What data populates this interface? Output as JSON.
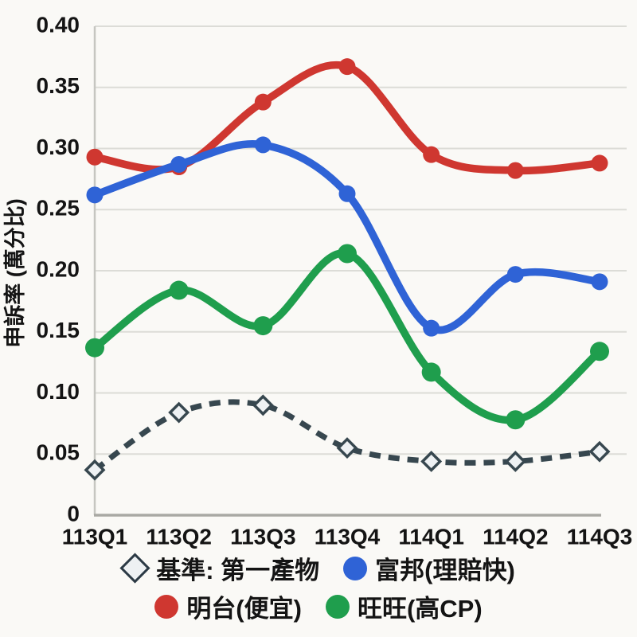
{
  "chart_data": {
    "type": "line",
    "title": "",
    "xlabel": "",
    "ylabel": "申訴率 (萬分比)",
    "categories": [
      "113Q1",
      "113Q2",
      "113Q3",
      "113Q4",
      "114Q1",
      "114Q2",
      "114Q3"
    ],
    "ylim": [
      0,
      0.4
    ],
    "ytick_labels": [
      "0",
      "0.05",
      "0.10",
      "0.15",
      "0.20",
      "0.25",
      "0.30",
      "0.35",
      "0.40"
    ],
    "yticks": [
      0,
      0.05,
      0.1,
      0.15,
      0.2,
      0.25,
      0.3,
      0.35,
      0.4
    ],
    "grid": true,
    "legend_position": "bottom",
    "series": [
      {
        "name": "基準: 第一產物",
        "color": "#37474f",
        "style": "dashed",
        "marker": "diamond",
        "marker_fill": "#eef1f3",
        "marker_size": 11,
        "values": [
          0.037,
          0.084,
          0.09,
          0.055,
          0.044,
          0.044,
          0.052
        ]
      },
      {
        "name": "旺旺(高CP)",
        "color": "#1f9e4d",
        "style": "solid",
        "marker": "circle",
        "marker_size": 12,
        "values": [
          0.137,
          0.184,
          0.155,
          0.214,
          0.117,
          0.078,
          0.134
        ]
      },
      {
        "name": "明台(便宜)",
        "color": "#cf3730",
        "style": "solid",
        "marker": "circle",
        "marker_size": 10.5,
        "values": [
          0.293,
          0.285,
          0.338,
          0.367,
          0.295,
          0.282,
          0.288
        ]
      },
      {
        "name": "富邦(理賠快)",
        "color": "#2f63d6",
        "style": "solid",
        "marker": "circle",
        "marker_size": 10.5,
        "values": [
          0.262,
          0.287,
          0.303,
          0.263,
          0.153,
          0.197,
          0.191
        ]
      }
    ],
    "legend_rows": [
      [
        "基準: 第一產物",
        "富邦(理賠快)"
      ],
      [
        "明台(便宜)",
        "旺旺(高CP)"
      ]
    ]
  }
}
